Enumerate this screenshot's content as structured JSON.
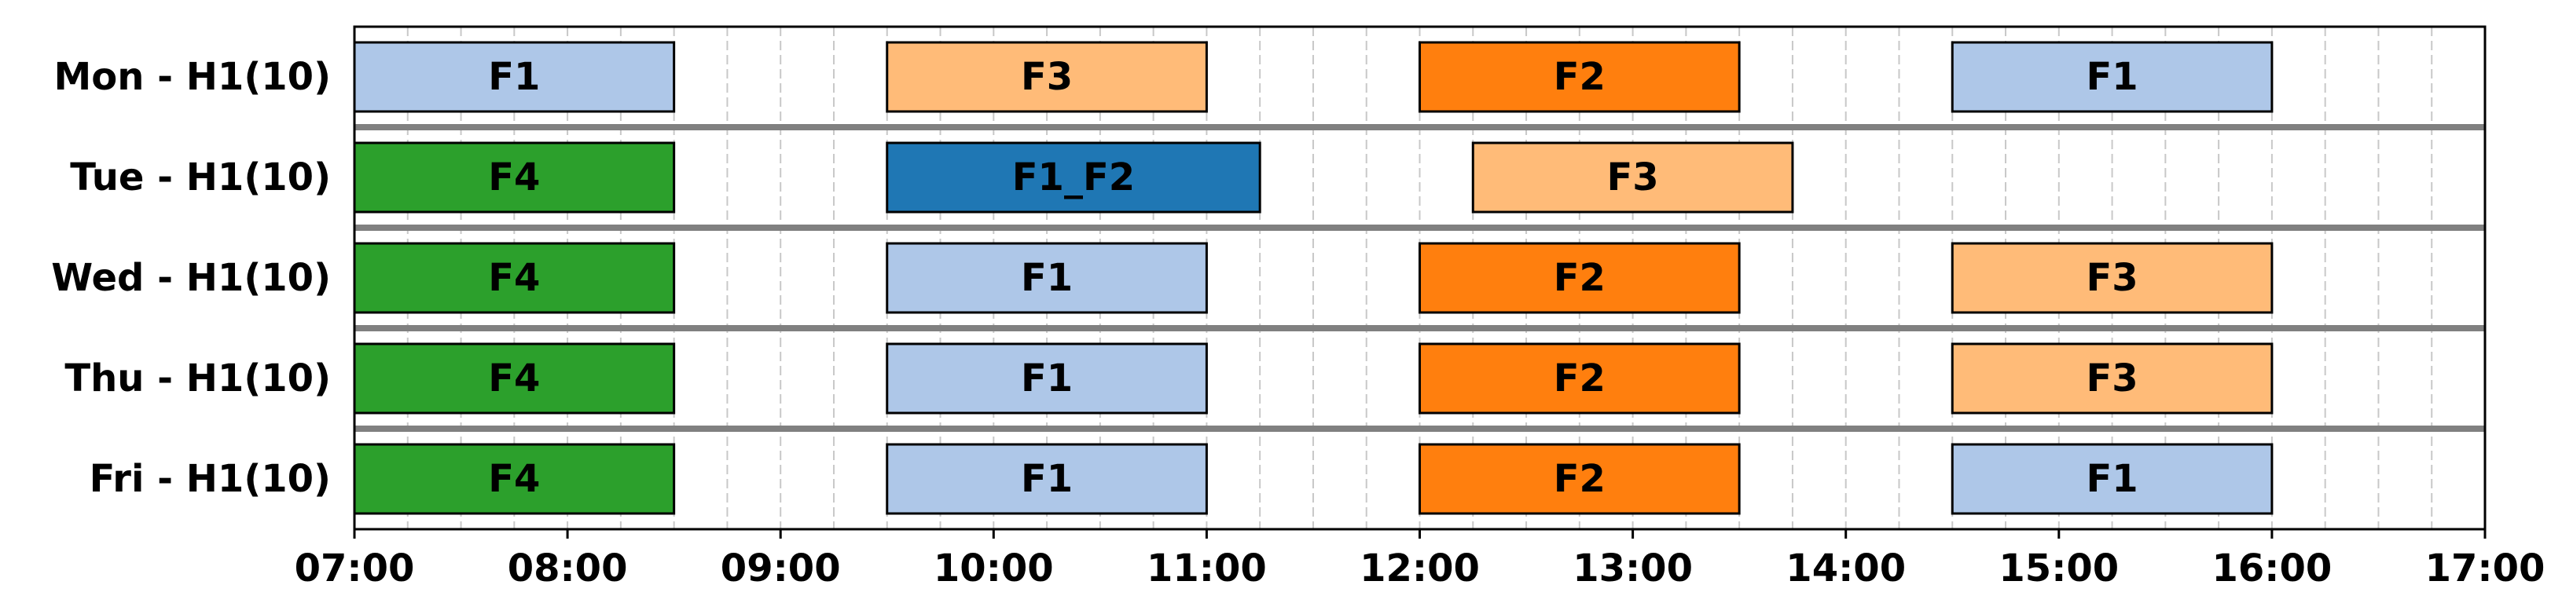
{
  "chart_data": {
    "type": "gantt",
    "title": "",
    "xlabel": "",
    "ylabel": "",
    "x_range": [
      "07:00",
      "17:00"
    ],
    "x_ticks": [
      "07:00",
      "08:00",
      "09:00",
      "10:00",
      "11:00",
      "12:00",
      "13:00",
      "14:00",
      "15:00",
      "16:00",
      "17:00"
    ],
    "grid": "vertical dashed every 15 min",
    "rows": [
      {
        "label": "Mon - H1(10)",
        "tasks": [
          {
            "name": "F1",
            "start": "07:00",
            "end": "08:30",
            "color": "#aec7e8"
          },
          {
            "name": "F3",
            "start": "09:30",
            "end": "11:00",
            "color": "#ffbb78"
          },
          {
            "name": "F2",
            "start": "12:00",
            "end": "13:30",
            "color": "#ff7f0e"
          },
          {
            "name": "F1",
            "start": "14:30",
            "end": "16:00",
            "color": "#aec7e8"
          }
        ]
      },
      {
        "label": "Tue - H1(10)",
        "tasks": [
          {
            "name": "F4",
            "start": "07:00",
            "end": "08:30",
            "color": "#2ca02c"
          },
          {
            "name": "F1_F2",
            "start": "09:30",
            "end": "11:15",
            "color": "#1f77b4"
          },
          {
            "name": "F3",
            "start": "12:15",
            "end": "13:45",
            "color": "#ffbb78"
          }
        ]
      },
      {
        "label": "Wed - H1(10)",
        "tasks": [
          {
            "name": "F4",
            "start": "07:00",
            "end": "08:30",
            "color": "#2ca02c"
          },
          {
            "name": "F1",
            "start": "09:30",
            "end": "11:00",
            "color": "#aec7e8"
          },
          {
            "name": "F2",
            "start": "12:00",
            "end": "13:30",
            "color": "#ff7f0e"
          },
          {
            "name": "F3",
            "start": "14:30",
            "end": "16:00",
            "color": "#ffbb78"
          }
        ]
      },
      {
        "label": "Thu - H1(10)",
        "tasks": [
          {
            "name": "F4",
            "start": "07:00",
            "end": "08:30",
            "color": "#2ca02c"
          },
          {
            "name": "F1",
            "start": "09:30",
            "end": "11:00",
            "color": "#aec7e8"
          },
          {
            "name": "F2",
            "start": "12:00",
            "end": "13:30",
            "color": "#ff7f0e"
          },
          {
            "name": "F3",
            "start": "14:30",
            "end": "16:00",
            "color": "#ffbb78"
          }
        ]
      },
      {
        "label": "Fri - H1(10)",
        "tasks": [
          {
            "name": "F4",
            "start": "07:00",
            "end": "08:30",
            "color": "#2ca02c"
          },
          {
            "name": "F1",
            "start": "09:30",
            "end": "11:00",
            "color": "#aec7e8"
          },
          {
            "name": "F2",
            "start": "12:00",
            "end": "13:30",
            "color": "#ff7f0e"
          },
          {
            "name": "F1",
            "start": "14:30",
            "end": "16:00",
            "color": "#aec7e8"
          }
        ]
      }
    ]
  }
}
